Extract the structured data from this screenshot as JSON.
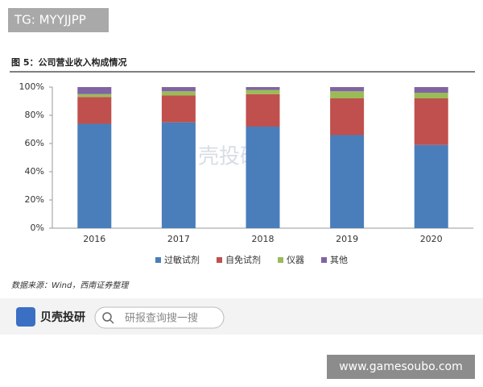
{
  "tag": "TG: MYYJJPP",
  "watermark": "贝壳投研",
  "source": "数据来源：Wind，西南证券整理",
  "brand": "贝壳投研",
  "search_placeholder": "研报查询搜一搜",
  "site": "www.gamesoubo.com",
  "chart_data": {
    "type": "stacked_bar",
    "title": "图 5：公司营业收入构成情况",
    "categories": [
      "2016",
      "2017",
      "2018",
      "2019",
      "2020"
    ],
    "series": [
      {
        "name": "过敏试剂",
        "color": "#4a7ebb",
        "values": [
          74,
          75,
          72,
          66,
          59
        ]
      },
      {
        "name": "自免试剂",
        "color": "#c0504d",
        "values": [
          19,
          19,
          23,
          26,
          33
        ]
      },
      {
        "name": "仪器",
        "color": "#9bbb59",
        "values": [
          2,
          3,
          3,
          5,
          4
        ]
      },
      {
        "name": "其他",
        "color": "#8064a2",
        "values": [
          5,
          3,
          2,
          3,
          4
        ]
      }
    ],
    "ylim": [
      0,
      100
    ],
    "yticks": [
      {
        "value": 0,
        "label": "0%"
      },
      {
        "value": 20,
        "label": "20%"
      },
      {
        "value": 40,
        "label": "40%"
      },
      {
        "value": 60,
        "label": "60%"
      },
      {
        "value": 80,
        "label": "80%"
      },
      {
        "value": 100,
        "label": "100%"
      }
    ],
    "legend": "bottom"
  }
}
